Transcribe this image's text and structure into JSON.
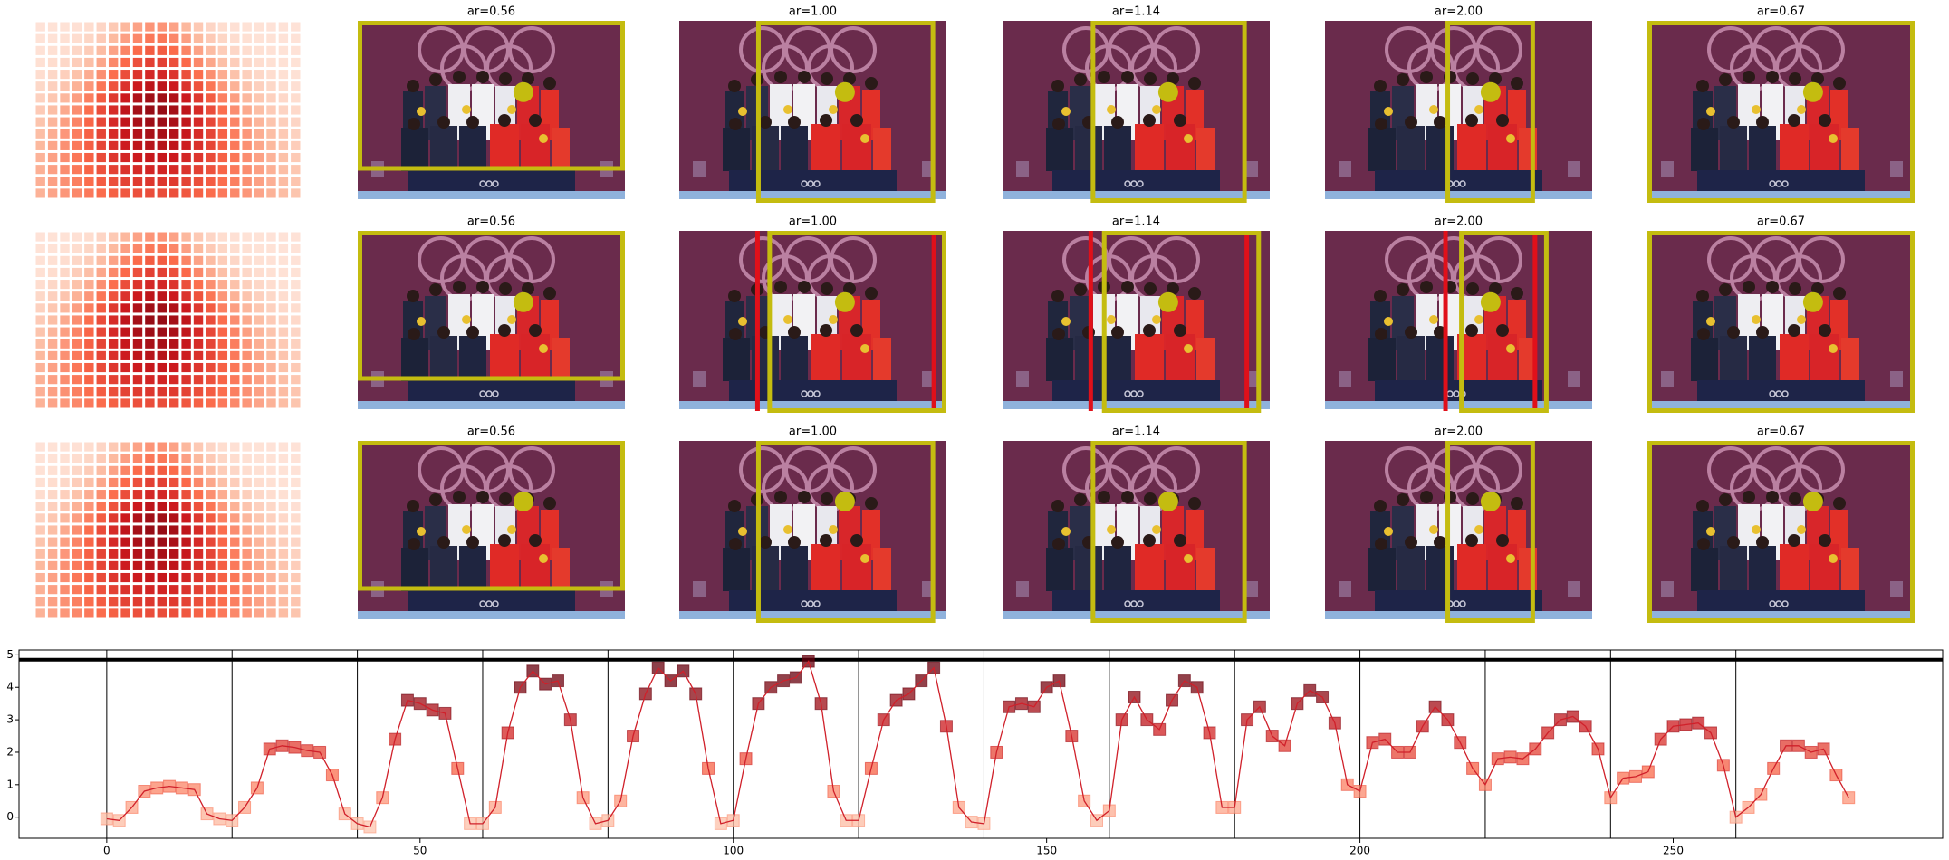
{
  "panel_titles": [
    [
      "ar=0.56",
      "ar=1.00",
      "ar=1.14",
      "ar=2.00",
      "ar=0.67"
    ],
    [
      "ar=0.56",
      "ar=1.00",
      "ar=1.14",
      "ar=2.00",
      "ar=0.67"
    ],
    [
      "ar=0.56",
      "ar=1.00",
      "ar=1.14",
      "ar=2.00",
      "ar=0.67"
    ]
  ],
  "chart_data": {
    "type": "line",
    "x": [
      0,
      2,
      4,
      6,
      8,
      10,
      12,
      14,
      16,
      18,
      20,
      22,
      24,
      26,
      28,
      30,
      32,
      34,
      36,
      38,
      40,
      42,
      44,
      46,
      48,
      50,
      52,
      54,
      56,
      58,
      60,
      62,
      64,
      66,
      68,
      70,
      72,
      74,
      76,
      78,
      80,
      82,
      84,
      86,
      88,
      90,
      92,
      94,
      96,
      98,
      100,
      102,
      104,
      106,
      108,
      110,
      112,
      114,
      116,
      118,
      120,
      122,
      124,
      126,
      128,
      130,
      132,
      134,
      136,
      138,
      140,
      142,
      144,
      146,
      148,
      150,
      152,
      154,
      156,
      158,
      160,
      162,
      164,
      166,
      168,
      170,
      172,
      174,
      176,
      178,
      180,
      182,
      184,
      186,
      188,
      190,
      192,
      194,
      196,
      198,
      200,
      202,
      204,
      206,
      208,
      210,
      212,
      214,
      216,
      218,
      220,
      222,
      224,
      226,
      228,
      230,
      232,
      234,
      236,
      238,
      240,
      242,
      244,
      246,
      248,
      250,
      252,
      254,
      256,
      258,
      260,
      262,
      264,
      266,
      268,
      270,
      272,
      274,
      276,
      278
    ],
    "values": [
      -0.05,
      -0.1,
      0.3,
      0.8,
      0.9,
      0.95,
      0.9,
      0.85,
      0.1,
      -0.05,
      -0.1,
      0.3,
      0.9,
      2.1,
      2.2,
      2.15,
      2.05,
      2.0,
      1.3,
      0.1,
      -0.2,
      -0.3,
      0.6,
      2.4,
      3.6,
      3.5,
      3.3,
      3.2,
      1.5,
      -0.2,
      -0.2,
      0.3,
      2.6,
      4.0,
      4.5,
      4.1,
      4.2,
      3.0,
      0.6,
      -0.2,
      -0.1,
      0.5,
      2.5,
      3.8,
      4.6,
      4.2,
      4.5,
      3.8,
      1.5,
      -0.2,
      -0.1,
      1.8,
      3.5,
      4.0,
      4.2,
      4.3,
      4.8,
      3.5,
      0.8,
      -0.1,
      -0.1,
      1.5,
      3.0,
      3.6,
      3.8,
      4.2,
      4.6,
      2.8,
      0.3,
      -0.15,
      -0.2,
      2.0,
      3.4,
      3.5,
      3.4,
      4.0,
      4.2,
      2.5,
      0.5,
      -0.1,
      0.2,
      3.0,
      3.7,
      3.0,
      2.7,
      3.6,
      4.2,
      4.0,
      2.6,
      0.3,
      0.3,
      3.0,
      3.4,
      2.5,
      2.2,
      3.5,
      3.9,
      3.7,
      2.9,
      1.0,
      0.8,
      2.3,
      2.4,
      2.0,
      2.0,
      2.8,
      3.4,
      3.0,
      2.3,
      1.5,
      1.0,
      1.8,
      1.85,
      1.8,
      2.1,
      2.6,
      3.0,
      3.1,
      2.8,
      2.1,
      0.6,
      1.2,
      1.25,
      1.4,
      2.4,
      2.8,
      2.85,
      2.9,
      2.6,
      1.6,
      0.0,
      0.3,
      0.7,
      1.5,
      2.2,
      2.2,
      2.0,
      2.1,
      1.3,
      0.6
    ],
    "color": "#d0202a",
    "marker": "square",
    "colormap": "Reds",
    "xlim": [
      -14,
      293
    ],
    "ylim": [
      -0.65,
      5.15
    ],
    "xticks": [
      0,
      50,
      100,
      150,
      200,
      250
    ],
    "yticks": [
      0,
      1,
      2,
      3,
      4,
      5
    ],
    "vlines": [
      0,
      20,
      40,
      60,
      80,
      100,
      120,
      140,
      160,
      180,
      200,
      220,
      240,
      260
    ],
    "hline": 4.85
  }
}
